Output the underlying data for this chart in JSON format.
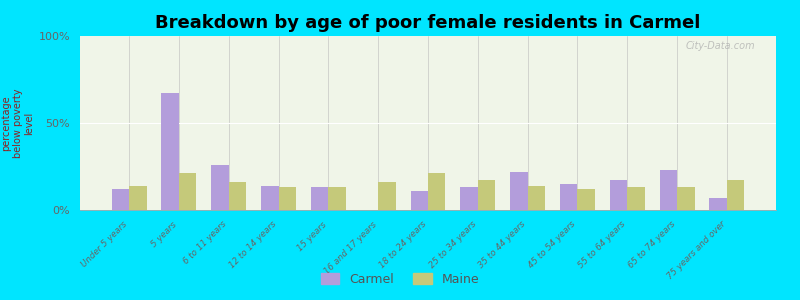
{
  "title": "Breakdown by age of poor female residents in Carmel",
  "ylabel": "percentage\nbelow poverty\nlevel",
  "categories": [
    "Under 5 years",
    "5 years",
    "6 to 11 years",
    "12 to 14 years",
    "15 years",
    "16 and 17 years",
    "18 to 24 years",
    "25 to 34 years",
    "35 to 44 years",
    "45 to 54 years",
    "55 to 64 years",
    "65 to 74 years",
    "75 years and over"
  ],
  "carmel_values": [
    12,
    67,
    26,
    14,
    13,
    0,
    11,
    13,
    22,
    15,
    17,
    23,
    7
  ],
  "maine_values": [
    14,
    21,
    16,
    13,
    13,
    16,
    21,
    17,
    14,
    12,
    13,
    13,
    17
  ],
  "carmel_color": "#b39ddb",
  "maine_color": "#c5c97a",
  "plot_bg_color": "#f0f5e8",
  "outer_bg": "#00e5ff",
  "ylim": [
    0,
    100
  ],
  "yticks": [
    0,
    50,
    100
  ],
  "ytick_labels": [
    "0%",
    "50%",
    "100%"
  ],
  "bar_width": 0.35,
  "title_fontsize": 13,
  "legend_labels": [
    "Carmel",
    "Maine"
  ],
  "watermark": "City-Data.com"
}
